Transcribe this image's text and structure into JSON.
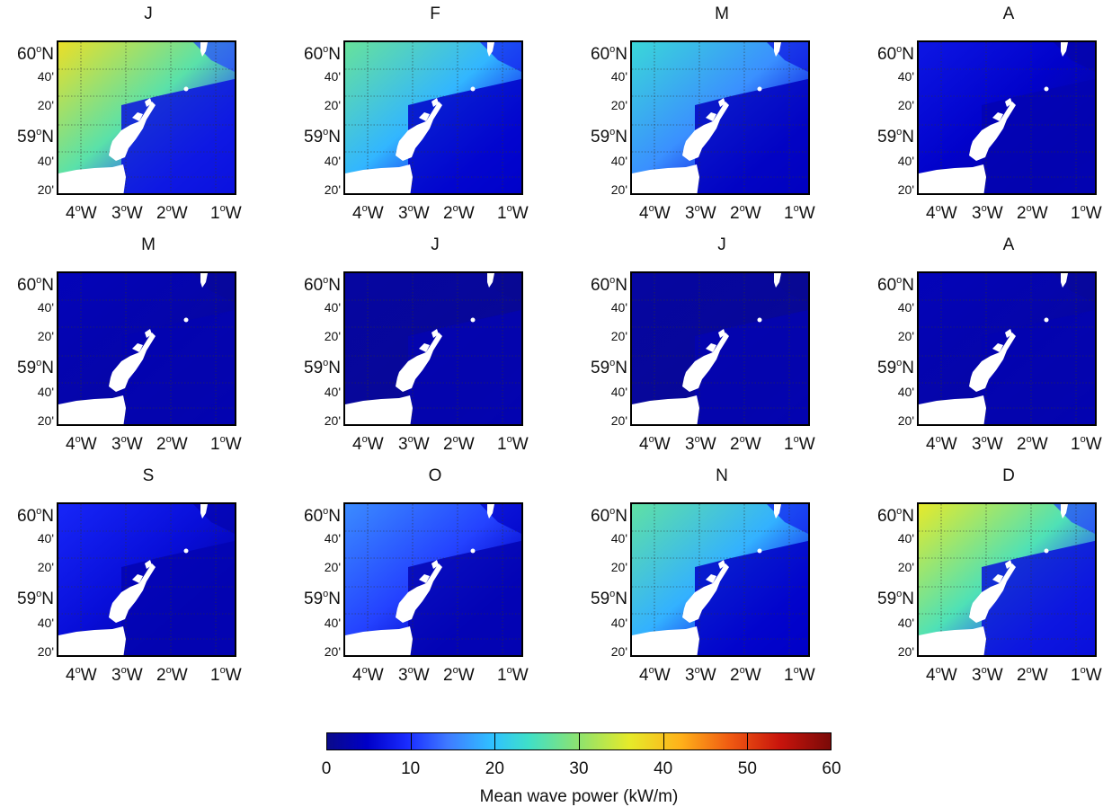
{
  "panels": [
    {
      "title": "J",
      "level": 0.62
    },
    {
      "title": "F",
      "level": 0.45
    },
    {
      "title": "M",
      "level": 0.38
    },
    {
      "title": "A",
      "level": 0.12
    },
    {
      "title": "M",
      "level": 0.06
    },
    {
      "title": "J",
      "level": 0.03
    },
    {
      "title": "J",
      "level": 0.03
    },
    {
      "title": "A",
      "level": 0.06
    },
    {
      "title": "S",
      "level": 0.15
    },
    {
      "title": "O",
      "level": 0.26
    },
    {
      "title": "N",
      "level": 0.44
    },
    {
      "title": "D",
      "level": 0.6
    }
  ],
  "axes": {
    "lat_60": "60",
    "lat_40a": "40'",
    "lat_20a": "20'",
    "lat_59": "59",
    "lat_40b": "40'",
    "lat_20b": "20'",
    "lat_unit": "N",
    "lon_4": "4",
    "lon_3": "3",
    "lon_2": "2",
    "lon_1": "1",
    "lon_unit": "W",
    "deg": "o"
  },
  "colorbar": {
    "title": "Mean wave power (kW/m)",
    "ticks": [
      "0",
      "10",
      "20",
      "30",
      "40",
      "50",
      "60"
    ],
    "min": 0,
    "max": 60
  }
}
